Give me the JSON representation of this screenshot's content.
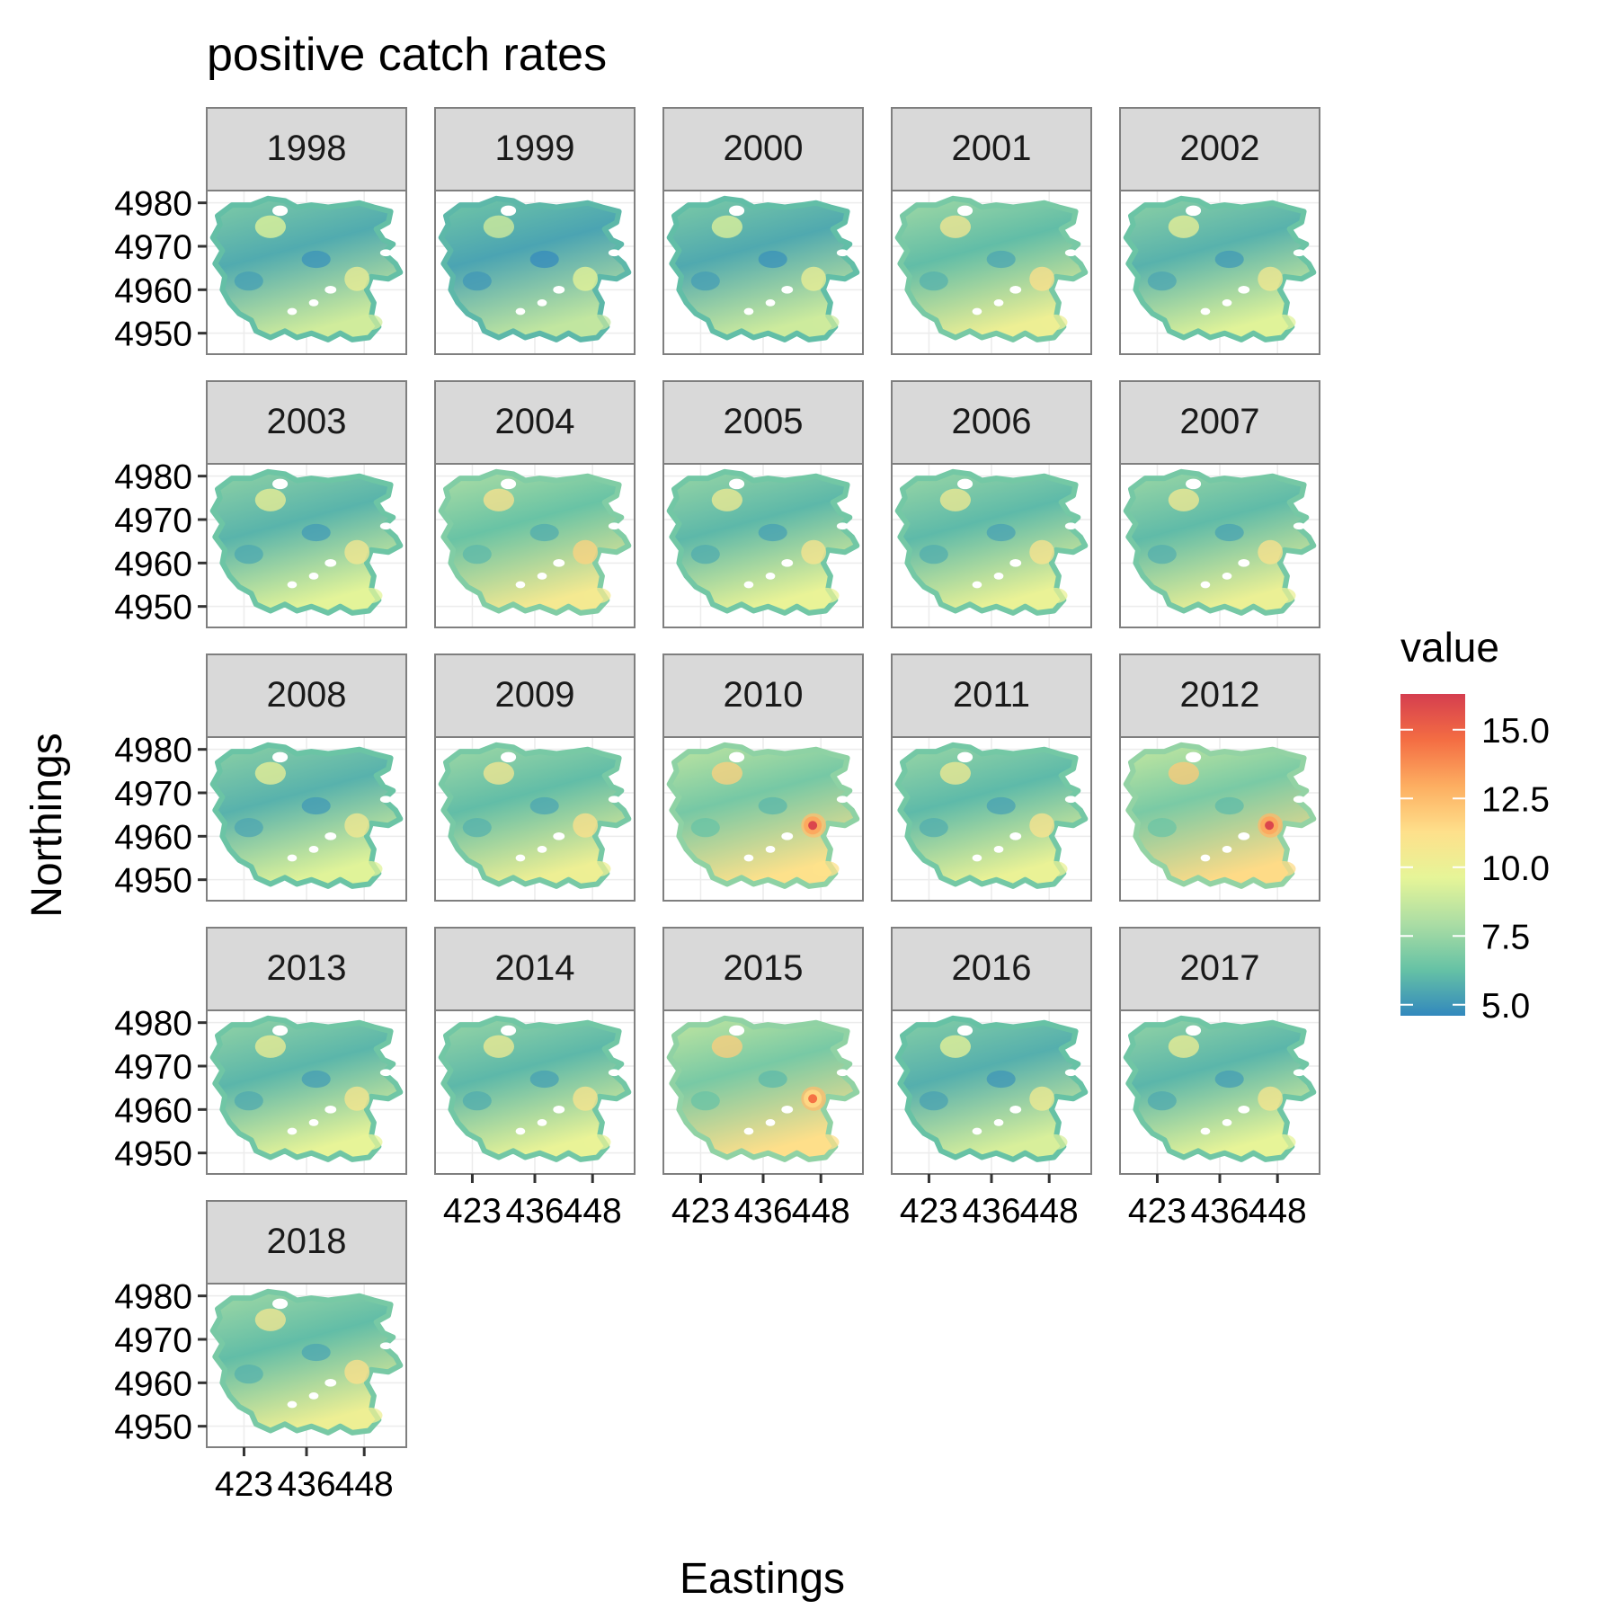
{
  "chart_data": {
    "type": "heatmap",
    "title": "positive catch rates",
    "xlabel": "Eastings",
    "ylabel": "Northings",
    "legend": {
      "title": "value",
      "placement": "right",
      "range": [
        4.6,
        16.3
      ],
      "ticks": [
        "15.0",
        "12.5",
        "10.0",
        "7.5",
        "5.0"
      ],
      "tick_values": [
        15.0,
        12.5,
        10.0,
        7.5,
        5.0
      ],
      "colors": [
        "#3288bd",
        "#66c2a5",
        "#abdda4",
        "#e6f598",
        "#fee08b",
        "#fdae61",
        "#f46d43",
        "#d53e4f"
      ]
    },
    "x_ticks": [
      "423",
      "436",
      "448"
    ],
    "x_tick_values": [
      423,
      436,
      448
    ],
    "y_ticks": [
      "4980",
      "4970",
      "4960",
      "4950"
    ],
    "y_tick_values": [
      4980,
      4970,
      4960,
      4950
    ],
    "xlim": [
      416,
      456
    ],
    "ylim": [
      4946,
      4982
    ],
    "grid": true,
    "panels": [
      {
        "year": "1998",
        "level": 0.2
      },
      {
        "year": "1999",
        "level": 0.1
      },
      {
        "year": "2000",
        "level": 0.18
      },
      {
        "year": "2001",
        "level": 0.45
      },
      {
        "year": "2002",
        "level": 0.3
      },
      {
        "year": "2003",
        "level": 0.32
      },
      {
        "year": "2004",
        "level": 0.55
      },
      {
        "year": "2005",
        "level": 0.38
      },
      {
        "year": "2006",
        "level": 0.4
      },
      {
        "year": "2007",
        "level": 0.42
      },
      {
        "year": "2008",
        "level": 0.3
      },
      {
        "year": "2009",
        "level": 0.45
      },
      {
        "year": "2010",
        "level": 0.7,
        "peak": 16.0
      },
      {
        "year": "2011",
        "level": 0.4
      },
      {
        "year": "2012",
        "level": 0.75,
        "peak": 16.0
      },
      {
        "year": "2013",
        "level": 0.35
      },
      {
        "year": "2014",
        "level": 0.38
      },
      {
        "year": "2015",
        "level": 0.72,
        "peak": 14.5
      },
      {
        "year": "2016",
        "level": 0.25
      },
      {
        "year": "2017",
        "level": 0.35
      },
      {
        "year": "2018",
        "level": 0.45
      }
    ]
  }
}
